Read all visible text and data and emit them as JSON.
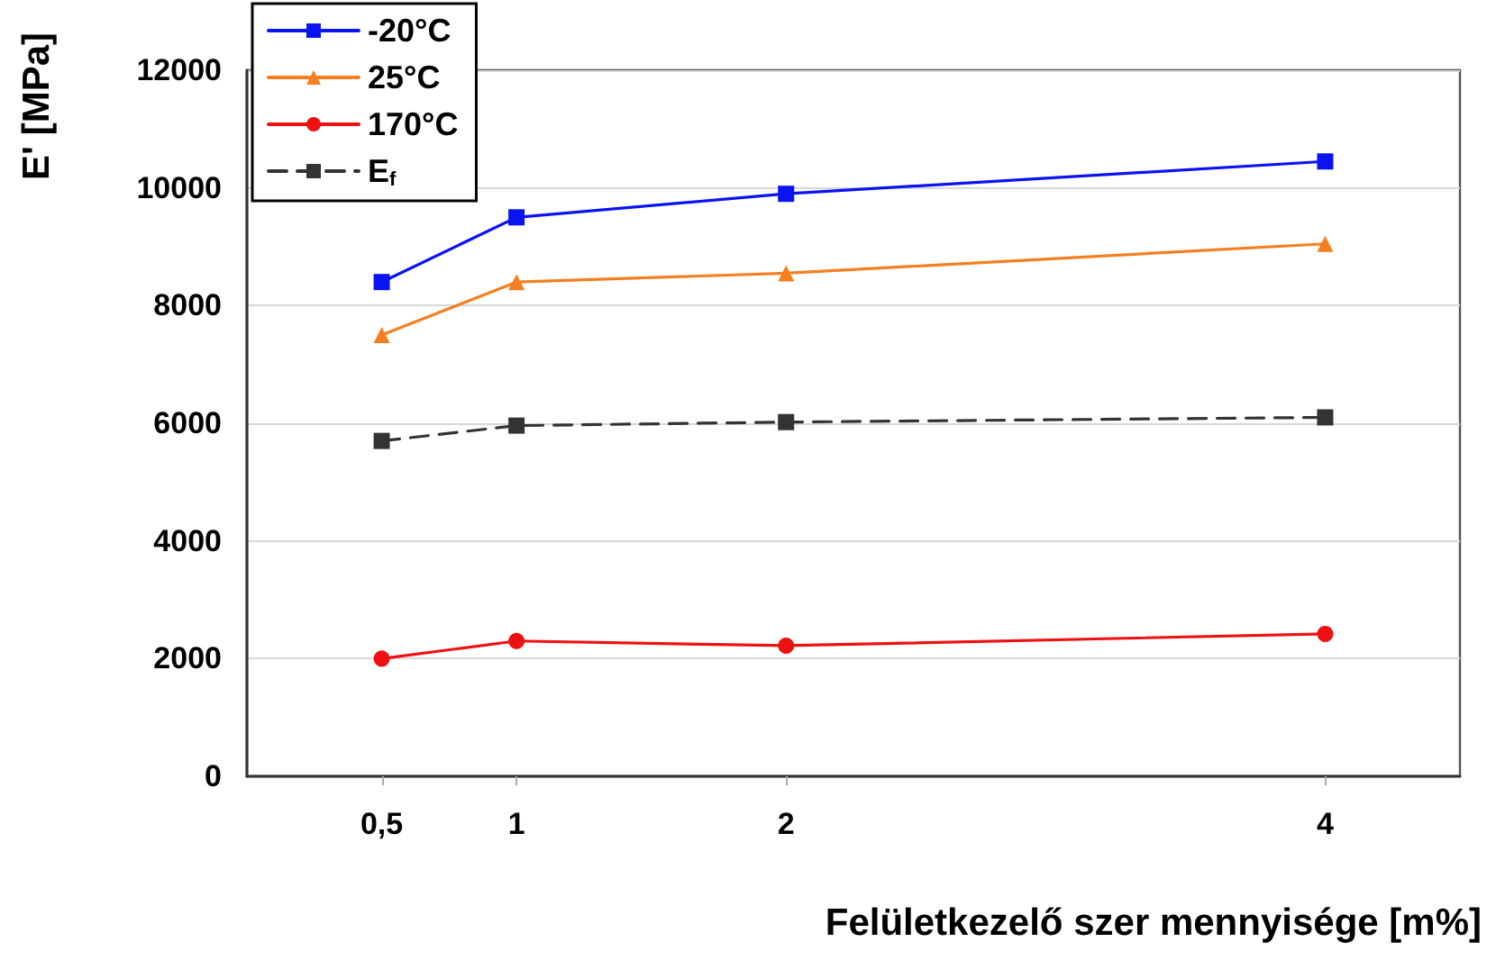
{
  "chart_data": {
    "type": "line",
    "xlabel": "Felületkezelő szer mennyisége [m%]",
    "ylabel": "E' [MPa]",
    "x": [
      0.5,
      1,
      2,
      4
    ],
    "series": [
      {
        "name": "-20°C",
        "color": "#0a14f0",
        "marker": "square",
        "line_style": "solid",
        "values": [
          8400,
          9500,
          9900,
          10450
        ]
      },
      {
        "name": "25°C",
        "color": "#f57f20",
        "marker": "triangle",
        "line_style": "solid",
        "values": [
          7500,
          8400,
          8550,
          9050
        ]
      },
      {
        "name": "170°C",
        "color": "#ee1111",
        "marker": "circle",
        "line_style": "solid",
        "values": [
          2000,
          2300,
          2220,
          2420
        ]
      },
      {
        "name": "E$_{f}$",
        "color": "#333333",
        "marker": "square",
        "line_style": "dashed",
        "values": [
          5700,
          5960,
          6020,
          6100
        ]
      }
    ],
    "xlim": [
      0,
      4.5
    ],
    "xticks": [
      {
        "value": 0.5,
        "label": "0,5"
      },
      1,
      2,
      4
    ],
    "ylim": [
      0,
      12000
    ],
    "yticks": [
      0,
      2000,
      4000,
      6000,
      8000,
      10000,
      12000
    ],
    "grid": "y",
    "legend": "top left"
  }
}
